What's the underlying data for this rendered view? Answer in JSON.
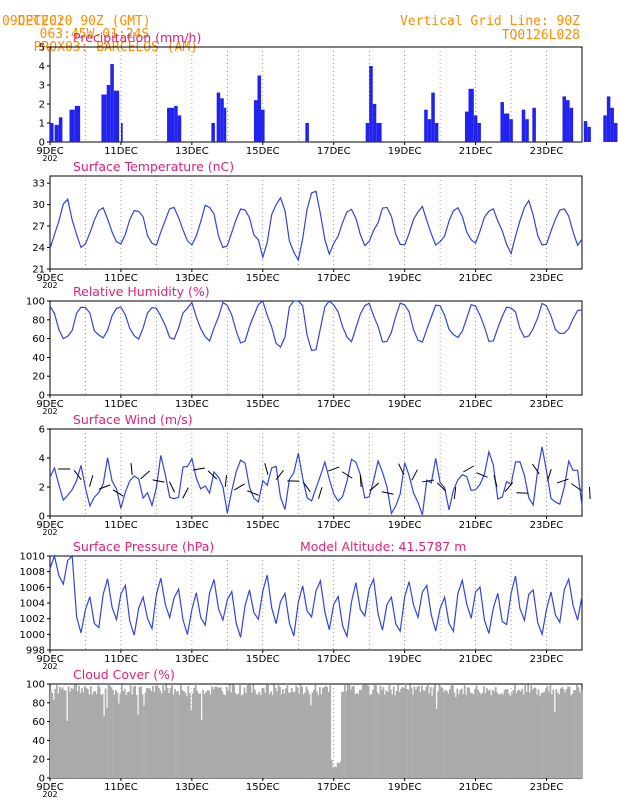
{
  "header": {
    "source": "CPTEC:",
    "coords": "063:45W-01:24S",
    "station": "PROX03: BARCELOS (AM)",
    "run": "09DEC2020 90Z (GMT)",
    "grid_line": "Vertical Grid Line: 90Z",
    "model": "TQ0126L028"
  },
  "x_axis": {
    "day_start": 9,
    "day_end": 24,
    "labels": [
      "9DEC",
      "11DEC",
      "13DEC",
      "15DEC",
      "17DEC",
      "19DEC",
      "21DEC",
      "23DEC"
    ],
    "label_days": [
      9,
      11,
      13,
      15,
      17,
      19,
      21,
      23
    ],
    "year_fragment": "202"
  },
  "chart_data": [
    {
      "type": "bar",
      "title": "Precipitation (mm/h)",
      "ylim": [
        0,
        5
      ],
      "yticks": [
        0,
        1,
        2,
        3,
        4,
        5
      ],
      "color": "#2222ee",
      "bursts": [
        [
          9.0,
          9.1,
          1.0
        ],
        [
          9.13,
          9.25,
          0.9
        ],
        [
          9.25,
          9.35,
          1.3
        ],
        [
          9.55,
          9.7,
          1.7
        ],
        [
          9.7,
          9.85,
          1.9
        ],
        [
          10.45,
          10.6,
          2.5
        ],
        [
          10.6,
          10.7,
          3.0
        ],
        [
          10.7,
          10.8,
          4.1
        ],
        [
          10.8,
          10.95,
          2.7
        ],
        [
          11.0,
          11.05,
          1.0
        ],
        [
          12.3,
          12.5,
          1.8
        ],
        [
          12.5,
          12.6,
          1.9
        ],
        [
          12.6,
          12.7,
          1.4
        ],
        [
          13.7,
          13.8,
          2.6
        ],
        [
          13.8,
          13.9,
          2.3
        ],
        [
          13.9,
          13.97,
          1.8
        ],
        [
          13.55,
          13.65,
          1.0
        ],
        [
          14.75,
          14.85,
          2.2
        ],
        [
          14.85,
          14.95,
          3.5
        ],
        [
          14.95,
          15.05,
          1.7
        ],
        [
          16.2,
          16.3,
          1.0
        ],
        [
          17.9,
          18.0,
          1.0
        ],
        [
          18.0,
          18.1,
          4.0
        ],
        [
          18.1,
          18.2,
          2.0
        ],
        [
          18.2,
          18.35,
          1.0
        ],
        [
          19.55,
          19.65,
          1.7
        ],
        [
          19.65,
          19.75,
          1.2
        ],
        [
          19.75,
          19.85,
          2.6
        ],
        [
          19.85,
          19.95,
          1.0
        ],
        [
          20.7,
          20.8,
          1.6
        ],
        [
          20.8,
          20.95,
          2.8
        ],
        [
          20.95,
          21.05,
          1.4
        ],
        [
          21.05,
          21.15,
          1.0
        ],
        [
          21.7,
          21.8,
          2.1
        ],
        [
          21.8,
          21.95,
          1.5
        ],
        [
          21.95,
          22.05,
          1.2
        ],
        [
          22.3,
          22.4,
          1.7
        ],
        [
          22.4,
          22.5,
          1.2
        ],
        [
          22.6,
          22.7,
          1.8
        ],
        [
          23.45,
          23.55,
          2.4
        ],
        [
          23.55,
          23.65,
          2.2
        ],
        [
          23.65,
          23.75,
          1.8
        ],
        [
          24.05,
          24.15,
          1.1
        ],
        [
          24.15,
          24.25,
          0.8
        ],
        [
          24.6,
          24.7,
          1.4
        ],
        [
          24.7,
          24.8,
          2.4
        ],
        [
          24.8,
          24.9,
          1.8
        ],
        [
          24.9,
          25.0,
          1.0
        ]
      ]
    },
    {
      "type": "line",
      "title": "Surface Temperature (nC)",
      "ylim": [
        21,
        34
      ],
      "yticks": [
        21,
        24,
        27,
        30,
        33
      ],
      "color": "#3344dd",
      "mean": 27,
      "amp": [
        3.5,
        2.5,
        2.5,
        2.5,
        3.0,
        2.5,
        4.0,
        4.5,
        2.5,
        2.5,
        2.5,
        2.5,
        2.5,
        3.5,
        2.5,
        2.0
      ]
    },
    {
      "type": "line",
      "title": "Relative Humidity (%)",
      "ylim": [
        0,
        100
      ],
      "yticks": [
        0,
        20,
        40,
        60,
        80,
        100
      ],
      "color": "#3344dd",
      "mean": 78,
      "amp": [
        18,
        18,
        18,
        18,
        20,
        22,
        30,
        30,
        20,
        20,
        20,
        18,
        20,
        18,
        16,
        14
      ]
    },
    {
      "type": "line",
      "title": "Surface Wind (m/s)",
      "ylim": [
        0,
        6
      ],
      "yticks": [
        0,
        2,
        4,
        6
      ],
      "color": "#3344dd",
      "mean": 2.2,
      "amp": [
        1.0,
        1.4,
        1.6,
        1.6,
        1.6,
        1.8,
        1.8,
        1.6,
        1.6,
        1.8,
        1.8,
        1.6,
        1.6,
        2.0,
        1.6,
        1.4
      ]
    },
    {
      "type": "line",
      "title": "Surface Pressure (hPa)",
      "subtitle": "Model Altitude: 41.5787 m",
      "ylim": [
        998,
        1010
      ],
      "yticks": [
        998,
        1000,
        1002,
        1004,
        1006,
        1008,
        1010
      ],
      "color": "#3344dd",
      "mean": 1003.5,
      "amp": [
        2.5
      ]
    },
    {
      "type": "bar",
      "title": "Cloud Cover (%)",
      "ylim": [
        0,
        100
      ],
      "yticks": [
        0,
        20,
        40,
        60,
        80,
        100
      ],
      "color": "#aaaaaa"
    }
  ]
}
